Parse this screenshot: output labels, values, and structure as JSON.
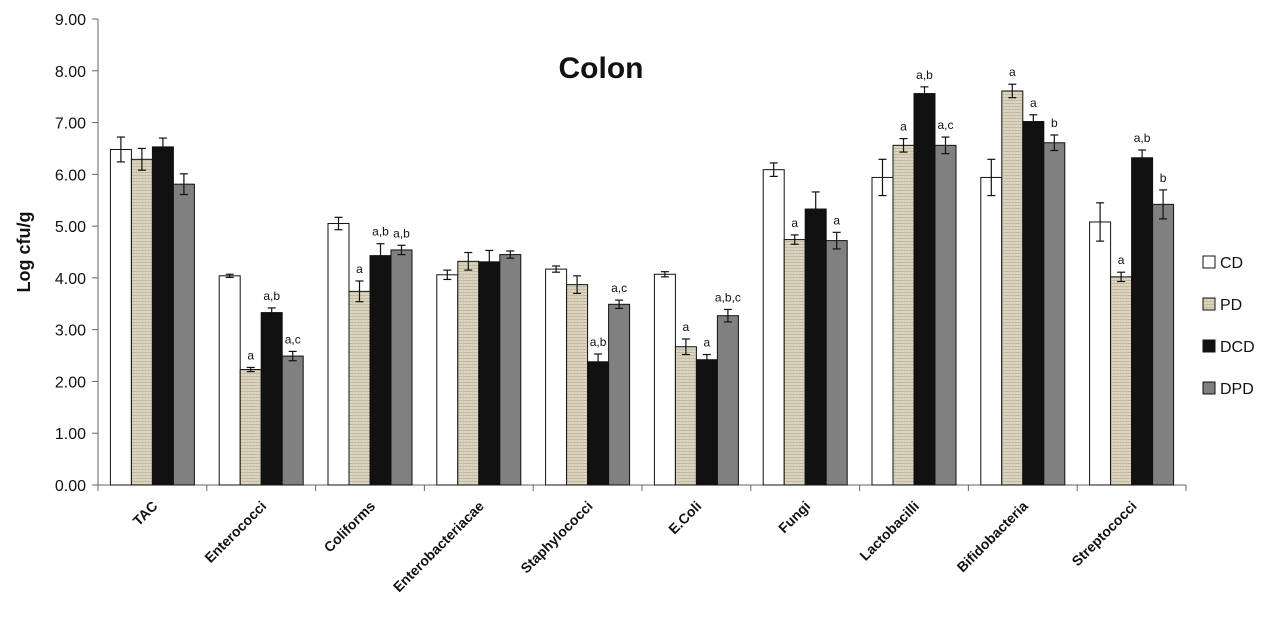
{
  "chart_data": {
    "type": "bar",
    "title": "Colon",
    "xlabel": "",
    "ylabel": "Log cfu/g",
    "ylim": [
      0,
      9
    ],
    "yticks": [
      "0.00",
      "1.00",
      "2.00",
      "3.00",
      "4.00",
      "5.00",
      "6.00",
      "7.00",
      "8.00",
      "9.00"
    ],
    "grid": false,
    "legend_position": "right",
    "categories": [
      "TAC",
      "Enterococci",
      "Coliforms",
      "Enterobacteriacae",
      "Staphylococci",
      "E.Coli",
      "Fungi",
      "Lactobacilli",
      "Bifidobacteria",
      "Streptococci"
    ],
    "series": [
      {
        "name": "CD",
        "color": "#ffffff",
        "pattern": "solid-white",
        "values": [
          6.48,
          4.04,
          5.05,
          4.06,
          4.17,
          4.07,
          6.09,
          5.94,
          5.94,
          5.08
        ],
        "errors": [
          0.24,
          0.03,
          0.12,
          0.09,
          0.06,
          0.05,
          0.13,
          0.35,
          0.35,
          0.37
        ],
        "annotations": [
          "",
          "",
          "",
          "",
          "",
          "",
          "",
          "",
          "",
          ""
        ]
      },
      {
        "name": "PD",
        "color": "#d9d2bd",
        "pattern": "woven",
        "values": [
          6.29,
          2.23,
          3.74,
          4.32,
          3.87,
          2.67,
          4.74,
          6.56,
          7.61,
          4.02
        ],
        "errors": [
          0.21,
          0.04,
          0.2,
          0.17,
          0.17,
          0.15,
          0.09,
          0.13,
          0.13,
          0.09
        ],
        "annotations": [
          "",
          "a",
          "a",
          "",
          "",
          "a",
          "a",
          "a",
          "a",
          "a"
        ]
      },
      {
        "name": "DCD",
        "color": "#111111",
        "pattern": "solid-black",
        "values": [
          6.53,
          3.33,
          4.43,
          4.31,
          2.38,
          2.42,
          5.33,
          7.56,
          7.02,
          6.32
        ],
        "errors": [
          0.17,
          0.09,
          0.23,
          0.22,
          0.15,
          0.1,
          0.33,
          0.13,
          0.13,
          0.15
        ],
        "annotations": [
          "",
          "a,b",
          "a,b",
          "",
          "a,b",
          "a",
          "",
          "a,b",
          "a",
          "a,b"
        ]
      },
      {
        "name": "DPD",
        "color": "#808080",
        "pattern": "solid-gray",
        "values": [
          5.81,
          2.49,
          4.54,
          4.45,
          3.49,
          3.27,
          4.72,
          6.56,
          6.61,
          5.42
        ],
        "errors": [
          0.2,
          0.09,
          0.09,
          0.07,
          0.08,
          0.12,
          0.16,
          0.16,
          0.15,
          0.28
        ],
        "annotations": [
          "",
          "a,c",
          "a,b",
          "",
          "a,c",
          "a,b,c",
          "a",
          "a,c",
          "b",
          "b"
        ]
      }
    ]
  }
}
